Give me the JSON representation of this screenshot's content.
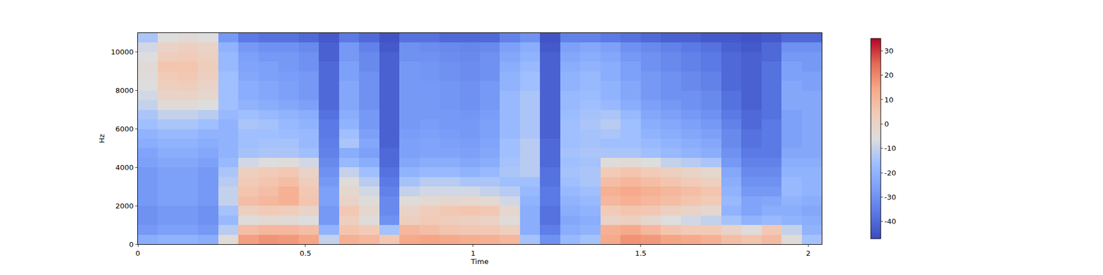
{
  "chart_data": {
    "type": "heatmap",
    "x_label": "Time",
    "y_label": "Hz",
    "xlim": [
      0,
      2.04
    ],
    "xticks": [
      0,
      0.5,
      1,
      1.5,
      2
    ],
    "ylim": [
      0,
      11000
    ],
    "yticks": [
      0,
      2000,
      4000,
      6000,
      8000,
      10000
    ],
    "x": [
      0.03,
      0.09,
      0.15,
      0.21,
      0.27,
      0.33,
      0.39,
      0.45,
      0.51,
      0.57,
      0.63,
      0.69,
      0.75,
      0.81,
      0.87,
      0.93,
      0.99,
      1.05,
      1.11,
      1.17,
      1.23,
      1.29,
      1.35,
      1.41,
      1.47,
      1.53,
      1.59,
      1.65,
      1.71,
      1.77,
      1.83,
      1.89,
      1.95,
      2.01
    ],
    "y": [
      250,
      750,
      1250,
      1750,
      2250,
      2750,
      3250,
      3750,
      4250,
      4750,
      5250,
      5750,
      6250,
      6750,
      7250,
      7750,
      8250,
      8750,
      9250,
      9750,
      10250,
      10750
    ],
    "cells": [
      [
        -22,
        -20,
        -20,
        -22,
        -5,
        16,
        18,
        17,
        15,
        -10,
        12,
        10,
        5,
        14,
        15,
        14,
        13,
        12,
        10,
        -15,
        -30,
        -18,
        -15,
        14,
        18,
        17,
        15,
        14,
        12,
        8,
        6,
        9,
        -5,
        -15
      ],
      [
        -28,
        -26,
        -26,
        -28,
        -12,
        8,
        10,
        10,
        8,
        -20,
        6,
        4,
        -15,
        10,
        8,
        6,
        5,
        5,
        2,
        -22,
        -35,
        -22,
        -20,
        12,
        14,
        10,
        6,
        4,
        4,
        0,
        -5,
        5,
        -10,
        -20
      ],
      [
        -30,
        -28,
        -28,
        -30,
        -18,
        -5,
        -3,
        -4,
        -6,
        -28,
        2,
        -5,
        -30,
        2,
        4,
        3,
        2,
        1,
        -5,
        -22,
        -38,
        -24,
        -22,
        0,
        2,
        -2,
        -6,
        -8,
        -10,
        -15,
        -20,
        -18,
        -20,
        -22
      ],
      [
        -30,
        -28,
        -28,
        -30,
        -15,
        2,
        4,
        3,
        0,
        -28,
        5,
        -2,
        -32,
        0,
        3,
        5,
        6,
        5,
        -2,
        -22,
        -38,
        -22,
        -20,
        4,
        6,
        5,
        2,
        0,
        -2,
        -20,
        -25,
        -22,
        -22,
        -24
      ],
      [
        -28,
        -26,
        -26,
        -28,
        -10,
        8,
        10,
        12,
        6,
        -26,
        0,
        -5,
        -32,
        -5,
        -3,
        -2,
        -2,
        -3,
        -8,
        -20,
        -36,
        -20,
        -18,
        10,
        12,
        10,
        8,
        6,
        4,
        -18,
        -25,
        -24,
        -20,
        -22
      ],
      [
        -28,
        -26,
        -26,
        -28,
        -10,
        6,
        8,
        12,
        5,
        -26,
        -2,
        -8,
        -34,
        -10,
        -8,
        -8,
        -8,
        -10,
        -12,
        -18,
        -36,
        -18,
        -16,
        12,
        14,
        12,
        10,
        8,
        6,
        -20,
        -28,
        -28,
        -18,
        -20
      ],
      [
        -28,
        -26,
        -26,
        -28,
        -12,
        4,
        6,
        8,
        3,
        -28,
        -5,
        -12,
        -36,
        -15,
        -12,
        -12,
        -14,
        -14,
        -16,
        -16,
        -38,
        -16,
        -14,
        8,
        10,
        8,
        6,
        4,
        2,
        -22,
        -30,
        -30,
        -18,
        -20
      ],
      [
        -28,
        -26,
        -26,
        -28,
        -14,
        2,
        4,
        5,
        0,
        -30,
        -10,
        -16,
        -38,
        -20,
        -18,
        -18,
        -20,
        -18,
        -14,
        -12,
        -38,
        -15,
        -14,
        4,
        6,
        4,
        2,
        0,
        -2,
        -24,
        -32,
        -32,
        -20,
        -20
      ],
      [
        -26,
        -24,
        -24,
        -26,
        -18,
        -8,
        -6,
        -5,
        -8,
        -32,
        -18,
        -22,
        -40,
        -24,
        -22,
        -22,
        -24,
        -22,
        -15,
        -12,
        -40,
        -16,
        -15,
        -5,
        -4,
        -6,
        -10,
        -12,
        -14,
        -28,
        -34,
        -34,
        -22,
        -22
      ],
      [
        -25,
        -22,
        -22,
        -24,
        -20,
        -15,
        -14,
        -14,
        -16,
        -34,
        -22,
        -26,
        -40,
        -26,
        -25,
        -25,
        -26,
        -24,
        -16,
        -12,
        -40,
        -15,
        -14,
        -14,
        -14,
        -16,
        -18,
        -20,
        -22,
        -30,
        -36,
        -36,
        -24,
        -24
      ],
      [
        -22,
        -20,
        -20,
        -22,
        -20,
        -16,
        -15,
        -15,
        -18,
        -35,
        -14,
        -24,
        -42,
        -26,
        -25,
        -26,
        -27,
        -25,
        -16,
        -12,
        -40,
        -16,
        -15,
        -16,
        -16,
        -18,
        -20,
        -22,
        -24,
        -32,
        -38,
        -36,
        -26,
        -24
      ],
      [
        -20,
        -18,
        -18,
        -20,
        -20,
        -16,
        -16,
        -17,
        -18,
        -36,
        -16,
        -26,
        -42,
        -27,
        -26,
        -27,
        -28,
        -26,
        -18,
        -14,
        -42,
        -16,
        -15,
        -14,
        -16,
        -20,
        -22,
        -24,
        -26,
        -32,
        -38,
        -36,
        -26,
        -24
      ],
      [
        -16,
        -14,
        -14,
        -16,
        -20,
        -14,
        -15,
        -18,
        -20,
        -36,
        -20,
        -28,
        -42,
        -28,
        -27,
        -28,
        -28,
        -26,
        -18,
        -14,
        -42,
        -16,
        -14,
        -12,
        -16,
        -22,
        -24,
        -26,
        -28,
        -34,
        -40,
        -36,
        -26,
        -24
      ],
      [
        -14,
        -10,
        -10,
        -12,
        -18,
        -16,
        -18,
        -20,
        -22,
        -38,
        -22,
        -28,
        -42,
        -28,
        -28,
        -28,
        -29,
        -27,
        -18,
        -14,
        -42,
        -17,
        -15,
        -14,
        -18,
        -24,
        -26,
        -28,
        -30,
        -36,
        -40,
        -38,
        -26,
        -24
      ],
      [
        -10,
        -4,
        -4,
        -6,
        -16,
        -20,
        -22,
        -24,
        -26,
        -40,
        -24,
        -30,
        -42,
        -28,
        -28,
        -29,
        -30,
        -28,
        -18,
        -14,
        -42,
        -18,
        -16,
        -18,
        -22,
        -26,
        -28,
        -30,
        -32,
        -38,
        -42,
        -38,
        -24,
        -24
      ],
      [
        -8,
        0,
        0,
        -2,
        -16,
        -22,
        -24,
        -26,
        -28,
        -40,
        -24,
        -30,
        -42,
        -28,
        -28,
        -29,
        -30,
        -28,
        -18,
        -14,
        -42,
        -18,
        -17,
        -20,
        -24,
        -28,
        -30,
        -30,
        -32,
        -38,
        -42,
        -38,
        -24,
        -24
      ],
      [
        -6,
        2,
        3,
        0,
        -16,
        -22,
        -24,
        -26,
        -28,
        -40,
        -24,
        -30,
        -42,
        -28,
        -28,
        -29,
        -30,
        -28,
        -20,
        -16,
        -42,
        -20,
        -18,
        -20,
        -24,
        -28,
        -30,
        -32,
        -34,
        -40,
        -42,
        -38,
        -24,
        -26
      ],
      [
        -5,
        4,
        5,
        2,
        -16,
        -24,
        -26,
        -27,
        -28,
        -40,
        -26,
        -30,
        -42,
        -28,
        -29,
        -30,
        -31,
        -30,
        -20,
        -16,
        -42,
        -20,
        -18,
        -22,
        -26,
        -28,
        -30,
        -32,
        -34,
        -40,
        -42,
        -38,
        -26,
        -26
      ],
      [
        -4,
        6,
        6,
        3,
        -18,
        -25,
        -26,
        -28,
        -30,
        -40,
        -26,
        -32,
        -42,
        -28,
        -29,
        -30,
        -31,
        -30,
        -22,
        -18,
        -42,
        -22,
        -20,
        -22,
        -26,
        -30,
        -32,
        -34,
        -36,
        -40,
        -42,
        -38,
        -26,
        -28
      ],
      [
        -6,
        3,
        4,
        2,
        -18,
        -26,
        -28,
        -28,
        -30,
        -42,
        -28,
        -32,
        -42,
        -30,
        -30,
        -31,
        -32,
        -30,
        -24,
        -20,
        -42,
        -24,
        -22,
        -24,
        -28,
        -30,
        -32,
        -34,
        -36,
        -40,
        -42,
        -40,
        -28,
        -28
      ],
      [
        -8,
        0,
        2,
        0,
        -20,
        -28,
        -30,
        -30,
        -32,
        -42,
        -28,
        -34,
        -44,
        -30,
        -31,
        -32,
        -33,
        -32,
        -26,
        -22,
        -44,
        -26,
        -24,
        -26,
        -30,
        -32,
        -34,
        -36,
        -38,
        -42,
        -44,
        -40,
        -30,
        -30
      ],
      [
        -14,
        -6,
        -4,
        -6,
        -28,
        -36,
        -38,
        -38,
        -40,
        -44,
        -36,
        -40,
        -45,
        -38,
        -38,
        -40,
        -40,
        -40,
        -34,
        -30,
        -45,
        -34,
        -34,
        -36,
        -38,
        -40,
        -42,
        -42,
        -44,
        -44,
        -45,
        -44,
        -40,
        -40
      ]
    ],
    "colorbar": {
      "range": [
        -47,
        35
      ],
      "ticks": [
        -40,
        -30,
        -20,
        -10,
        0,
        10,
        20,
        30
      ]
    }
  }
}
